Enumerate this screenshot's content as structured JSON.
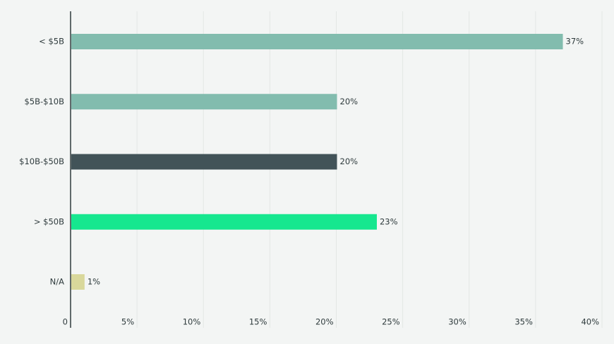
{
  "chart_data": {
    "type": "bar",
    "orientation": "horizontal",
    "categories": [
      "< $5B",
      "$5B-$10B",
      "$10B-$50B",
      "> $50B",
      "N/A"
    ],
    "values": [
      37,
      20,
      20,
      23,
      1
    ],
    "value_labels": [
      "37%",
      "20%",
      "20%",
      "23%",
      "1%"
    ],
    "colors": [
      "#82bcae",
      "#82bcae",
      "#425358",
      "#16e78f",
      "#d9d89b"
    ],
    "xlim": [
      0,
      40
    ],
    "xticks": [
      0,
      {
        "value": 5,
        "label": "5%"
      },
      {
        "value": 10,
        "label": "10%"
      },
      {
        "value": 15,
        "label": "15%"
      },
      {
        "value": 20,
        "label": "20%"
      },
      {
        "value": 25,
        "label": "25%"
      },
      {
        "value": 30,
        "label": "30%"
      },
      {
        "value": 35,
        "label": "35%"
      },
      {
        "value": 40,
        "label": "40%"
      }
    ],
    "grid": true
  }
}
